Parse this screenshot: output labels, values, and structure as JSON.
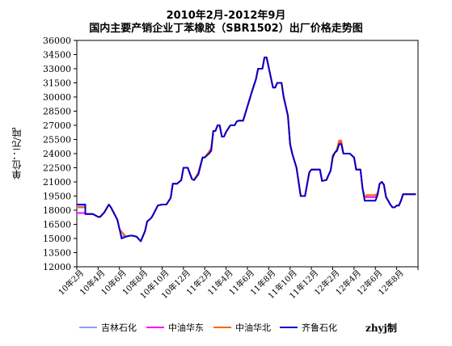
{
  "chart_data": {
    "type": "line",
    "title": "2010年2月-2012年9月",
    "subtitle": "国内主要产销企业丁苯橡胶（SBR1502）出厂价格走势图",
    "ylabel": "单位：元/吨",
    "xlabel": "",
    "ylim": [
      12000,
      36000
    ],
    "ytick_step": 1500,
    "yticks": [
      "12000",
      "13500",
      "15000",
      "16500",
      "18000",
      "19500",
      "21000",
      "22500",
      "24000",
      "25500",
      "27000",
      "28500",
      "30000",
      "31500",
      "33000",
      "34500",
      "36000"
    ],
    "x_tick_labels": [
      "10年2月",
      "10年4月",
      "10年6月",
      "10年8月",
      "10年10月",
      "10年12月",
      "11年2月",
      "11年4月",
      "11年6月",
      "11年8月",
      "11年10月",
      "11年12月",
      "12年2月",
      "12年4月",
      "12年6月",
      "12年8月"
    ],
    "x_range": [
      0,
      32
    ],
    "grid": false,
    "legend_position": "bottom",
    "series": [
      {
        "name": "吉林石化",
        "color": "#9999ff",
        "x": [
          0,
          0.8,
          0.8,
          1.5,
          2,
          2.2,
          2.6,
          3,
          3.2,
          3.8,
          4,
          4.2,
          4.6,
          5,
          5.2,
          5.6,
          6,
          6.4,
          6.6,
          6.8,
          7,
          7.2,
          7.6,
          8,
          8.4,
          8.8,
          9,
          9.4,
          9.8,
          10,
          10.4,
          10.8,
          11,
          11.4,
          11.8,
          12,
          12.4,
          12.6,
          12.8,
          13,
          13.2,
          13.4,
          13.6,
          13.8,
          14,
          14.4,
          14.8,
          15,
          15.2,
          15.6,
          16,
          16.4,
          16.8,
          17,
          17.4,
          17.6,
          17.8,
          18,
          18.4,
          18.6,
          18.8,
          19,
          19.2,
          19.4,
          19.6,
          19.8,
          20,
          20.2,
          20.6,
          21,
          21.4,
          21.8,
          22,
          22.4,
          22.8,
          23,
          23.4,
          23.6,
          23.8,
          24,
          24.2,
          24.4,
          24.6,
          24.8,
          25,
          25.2,
          25.6,
          26,
          26.2,
          26.6,
          26.8,
          27,
          27.2,
          27.6,
          28,
          28.2,
          28.4,
          28.6,
          28.8,
          29,
          29.2,
          29.4,
          29.6,
          29.8,
          30,
          30.2,
          30.4,
          30.6,
          30.8,
          31,
          31.2,
          31.6,
          31.8
        ],
        "values": [
          18400,
          18400,
          17600,
          17600,
          17300,
          17300,
          17800,
          18600,
          18300,
          17000,
          16000,
          15300,
          15200,
          15300,
          15300,
          15200,
          14700,
          15800,
          16800,
          17000,
          17200,
          17600,
          18500,
          18600,
          18600,
          19300,
          20800,
          20800,
          21200,
          22500,
          22500,
          21300,
          21200,
          21800,
          23600,
          23600,
          24200,
          24300,
          26400,
          26400,
          27000,
          27000,
          25800,
          25800,
          26300,
          27000,
          27000,
          27400,
          27500,
          27500,
          29000,
          30500,
          31900,
          33000,
          33000,
          34200,
          34200,
          33100,
          31000,
          31000,
          31500,
          31500,
          31500,
          30000,
          29000,
          28000,
          25000,
          24000,
          22500,
          19500,
          19500,
          22000,
          22300,
          22300,
          22300,
          21100,
          21200,
          21700,
          22200,
          23600,
          24100,
          24300,
          25200,
          25200,
          24000,
          24000,
          24000,
          23600,
          22300,
          22300,
          20300,
          19400,
          19400,
          19400,
          19400,
          19600,
          20800,
          21000,
          20700,
          19400,
          19000,
          18600,
          18300,
          18300,
          18500,
          18500,
          19000,
          19700,
          19700,
          19700,
          19700,
          19700,
          19700
        ]
      },
      {
        "name": "中油华东",
        "color": "#ff00ff",
        "x": [
          0,
          0.8,
          0.8,
          1.5,
          2,
          2.2,
          2.6,
          3,
          3.2,
          3.8,
          4,
          4.2,
          4.6,
          5,
          5.2,
          5.6,
          6,
          6.4,
          6.6,
          6.8,
          7,
          7.2,
          7.6,
          8,
          8.4,
          8.8,
          9,
          9.4,
          9.8,
          10,
          10.4,
          10.8,
          11,
          11.4,
          11.8,
          12,
          12.4,
          12.6,
          12.8,
          13,
          13.2,
          13.4,
          13.6,
          13.8,
          14,
          14.4,
          14.8,
          15,
          15.2,
          15.6,
          16,
          16.4,
          16.8,
          17,
          17.4,
          17.6,
          17.8,
          18,
          18.4,
          18.6,
          18.8,
          19,
          19.2,
          19.4,
          19.6,
          19.8,
          20,
          20.2,
          20.6,
          21,
          21.4,
          21.8,
          22,
          22.4,
          22.8,
          23,
          23.4,
          23.6,
          23.8,
          24,
          24.2,
          24.4,
          24.6,
          24.8,
          25,
          25.2,
          25.6,
          26,
          26.2,
          26.6,
          26.8,
          27,
          27.2,
          27.6,
          28,
          28.2,
          28.4,
          28.6,
          28.8,
          29,
          29.2,
          29.4,
          29.6,
          29.8,
          30,
          30.2,
          30.4,
          30.6,
          30.8,
          31,
          31.2,
          31.6,
          31.8
        ],
        "values": [
          17700,
          17700,
          17600,
          17600,
          17300,
          17300,
          17800,
          18600,
          18300,
          17000,
          16000,
          15700,
          15200,
          15300,
          15300,
          15200,
          14700,
          15800,
          16800,
          17000,
          17200,
          17600,
          18500,
          18600,
          18600,
          19300,
          20800,
          20800,
          21200,
          22500,
          22500,
          21300,
          21200,
          22000,
          23600,
          23600,
          24200,
          24600,
          26400,
          26400,
          27000,
          27000,
          25800,
          25800,
          26300,
          27000,
          27000,
          27400,
          27500,
          27500,
          29000,
          30500,
          31900,
          33000,
          33000,
          34200,
          34200,
          33100,
          31000,
          31000,
          31500,
          31500,
          31500,
          30000,
          29000,
          28000,
          25000,
          24000,
          22500,
          19500,
          19500,
          22000,
          22300,
          22300,
          22300,
          21100,
          21200,
          21700,
          22200,
          23800,
          24100,
          24300,
          25200,
          25200,
          24000,
          24000,
          24000,
          23600,
          22300,
          22300,
          20300,
          19400,
          19400,
          19400,
          19400,
          19600,
          20800,
          21000,
          20700,
          19400,
          19000,
          18600,
          18300,
          18300,
          18500,
          18500,
          19000,
          19700,
          19700,
          19700,
          19700,
          19700,
          19700
        ]
      },
      {
        "name": "中油华北",
        "color": "#ff6600",
        "x": [
          0,
          0.8,
          0.8,
          1.5,
          2,
          2.2,
          2.6,
          3,
          3.2,
          3.8,
          4,
          4.2,
          4.6,
          5,
          5.2,
          5.6,
          6,
          6.4,
          6.6,
          6.8,
          7,
          7.2,
          7.6,
          8,
          8.4,
          8.8,
          9,
          9.4,
          9.8,
          10,
          10.4,
          10.8,
          11,
          11.4,
          11.8,
          12,
          12.4,
          12.6,
          12.8,
          13,
          13.2,
          13.4,
          13.6,
          13.8,
          14,
          14.4,
          14.8,
          15,
          15.2,
          15.6,
          16,
          16.4,
          16.8,
          17,
          17.4,
          17.6,
          17.8,
          18,
          18.4,
          18.6,
          18.8,
          19,
          19.2,
          19.4,
          19.6,
          19.8,
          20,
          20.2,
          20.6,
          21,
          21.4,
          21.8,
          22,
          22.4,
          22.8,
          23,
          23.4,
          23.6,
          23.8,
          24,
          24.2,
          24.4,
          24.6,
          24.8,
          25,
          25.2,
          25.6,
          26,
          26.2,
          26.6,
          26.8,
          27,
          27.2,
          27.6,
          28,
          28.2,
          28.4,
          28.6,
          28.8,
          29,
          29.2,
          29.4,
          29.6,
          29.8,
          30,
          30.2,
          30.4,
          30.6,
          30.8,
          31,
          31.2,
          31.6,
          31.8
        ],
        "values": [
          18300,
          18300,
          17600,
          17600,
          17300,
          17300,
          17800,
          18600,
          18300,
          17000,
          16000,
          15700,
          15200,
          15300,
          15300,
          15200,
          14700,
          15800,
          16800,
          17000,
          17200,
          17600,
          18500,
          18600,
          18600,
          19300,
          20800,
          20800,
          21200,
          22500,
          22500,
          21300,
          21200,
          22000,
          23600,
          23600,
          24200,
          24600,
          26400,
          26400,
          27000,
          27000,
          25800,
          25800,
          26300,
          27000,
          27000,
          27400,
          27500,
          27500,
          29000,
          30500,
          31900,
          33000,
          33000,
          34200,
          34200,
          33100,
          31000,
          31000,
          31500,
          31500,
          31500,
          30000,
          29000,
          28000,
          25000,
          24000,
          22500,
          19500,
          19500,
          22000,
          22300,
          22300,
          22300,
          21100,
          21200,
          21700,
          22200,
          23800,
          24100,
          24500,
          25400,
          25400,
          24000,
          24000,
          24000,
          23600,
          22300,
          22300,
          20300,
          19400,
          19600,
          19600,
          19600,
          19800,
          20800,
          21000,
          20700,
          19400,
          19000,
          18600,
          18300,
          18300,
          18500,
          18500,
          19000,
          19700,
          19700,
          19700,
          19700,
          19700,
          19700
        ]
      },
      {
        "name": "齐鲁石化",
        "color": "#0000cc",
        "x": [
          0,
          0.8,
          0.8,
          1.5,
          2,
          2.2,
          2.6,
          3,
          3.2,
          3.8,
          4,
          4.2,
          4.6,
          5,
          5.2,
          5.6,
          6,
          6.4,
          6.6,
          6.8,
          7,
          7.2,
          7.6,
          8,
          8.4,
          8.8,
          9,
          9.4,
          9.8,
          10,
          10.4,
          10.8,
          11,
          11.4,
          11.8,
          12,
          12.4,
          12.6,
          12.8,
          13,
          13.2,
          13.4,
          13.6,
          13.8,
          14,
          14.4,
          14.8,
          15,
          15.2,
          15.6,
          16,
          16.4,
          16.8,
          17,
          17.4,
          17.6,
          17.8,
          18,
          18.4,
          18.6,
          18.8,
          19,
          19.2,
          19.4,
          19.6,
          19.8,
          20,
          20.2,
          20.6,
          21,
          21.4,
          21.8,
          22,
          22.4,
          22.8,
          23,
          23.4,
          23.6,
          23.8,
          24,
          24.2,
          24.4,
          24.6,
          24.8,
          25,
          25.2,
          25.6,
          26,
          26.2,
          26.6,
          26.8,
          27,
          27.2,
          27.6,
          28,
          28.2,
          28.4,
          28.6,
          28.8,
          29,
          29.2,
          29.4,
          29.6,
          29.8,
          30,
          30.2,
          30.4,
          30.6,
          30.8,
          31,
          31.2,
          31.6,
          31.8
        ],
        "values": [
          18600,
          18600,
          17600,
          17600,
          17300,
          17300,
          17800,
          18600,
          18300,
          17000,
          16000,
          15000,
          15200,
          15300,
          15300,
          15200,
          14700,
          15800,
          16800,
          17000,
          17200,
          17600,
          18500,
          18600,
          18600,
          19300,
          20800,
          20800,
          21200,
          22500,
          22500,
          21300,
          21200,
          21800,
          23600,
          23600,
          24000,
          24300,
          26400,
          26400,
          27000,
          27000,
          25800,
          25800,
          26300,
          27000,
          27000,
          27400,
          27500,
          27500,
          29000,
          30500,
          31900,
          33000,
          33000,
          34200,
          34200,
          33100,
          31000,
          31000,
          31500,
          31500,
          31500,
          30000,
          29000,
          28000,
          25000,
          24000,
          22500,
          19500,
          19500,
          22000,
          22300,
          22300,
          22300,
          21100,
          21200,
          21700,
          22200,
          23600,
          24100,
          24300,
          25000,
          25000,
          24000,
          24000,
          24000,
          23600,
          22300,
          22300,
          20300,
          19000,
          19000,
          19000,
          19000,
          19600,
          20800,
          21000,
          20700,
          19400,
          19000,
          18600,
          18300,
          18300,
          18500,
          18500,
          19000,
          19700,
          19700,
          19700,
          19700,
          19700,
          19700
        ]
      }
    ]
  },
  "credit": "zhyj制"
}
